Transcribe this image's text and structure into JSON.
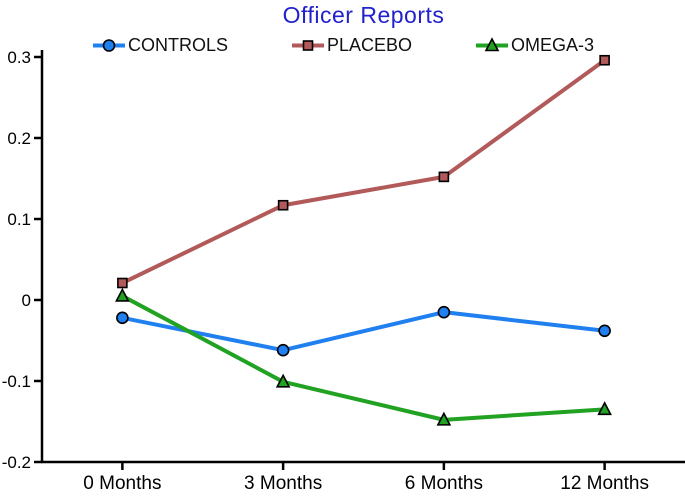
{
  "colors": {
    "title": "#2222cc",
    "axis": "#000000",
    "background": "#ffffff"
  },
  "chart_data": {
    "type": "line",
    "title": "Officer Reports",
    "categories": [
      "0 Months",
      "3 Months",
      "6 Months",
      "12 Months"
    ],
    "series": [
      {
        "name": "CONTROLS",
        "color": "#2080f0",
        "marker": "circle",
        "values": [
          -0.022,
          -0.062,
          -0.015,
          -0.038
        ]
      },
      {
        "name": "PLACEBO",
        "color": "#b25959",
        "marker": "square",
        "values": [
          0.021,
          0.117,
          0.152,
          0.296
        ]
      },
      {
        "name": "OMEGA-3",
        "color": "#22a222",
        "marker": "triangle",
        "values": [
          0.005,
          -0.101,
          -0.148,
          -0.135
        ]
      }
    ],
    "ylim": [
      -0.2,
      0.3
    ],
    "yticks": [
      -0.2,
      -0.1,
      0,
      0.1,
      0.2,
      0.3
    ],
    "ytick_labels": [
      "-0.2",
      "-0.1",
      "0",
      "0.1",
      "0.2",
      "0.3"
    ],
    "xlabel": "",
    "ylabel": "",
    "grid": false,
    "legend_position": "top"
  }
}
